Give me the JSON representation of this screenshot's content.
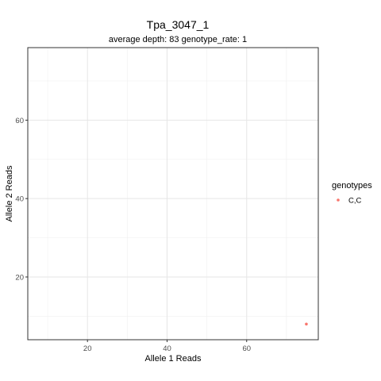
{
  "chart_data": {
    "type": "scatter",
    "title": "Tpa_3047_1",
    "subtitle": "average depth:  83  genotype_rate:  1",
    "xlabel": "Allele 1 Reads",
    "ylabel": "Allele 2 Reads",
    "xlim": [
      5,
      78
    ],
    "ylim": [
      4,
      78.5
    ],
    "xticks": [
      20,
      40,
      60
    ],
    "yticks": [
      20,
      40,
      60
    ],
    "x_minor": [
      10,
      30,
      50,
      70
    ],
    "y_minor": [
      10,
      30,
      50,
      70
    ],
    "grid": true,
    "legend": {
      "title": "genotypes",
      "position": "right",
      "entries": [
        {
          "label": "C,C",
          "color": "#F8766D"
        }
      ]
    },
    "series": [
      {
        "name": "C,C",
        "color": "#F8766D",
        "points": [
          {
            "x": 75,
            "y": 8
          }
        ]
      }
    ]
  }
}
